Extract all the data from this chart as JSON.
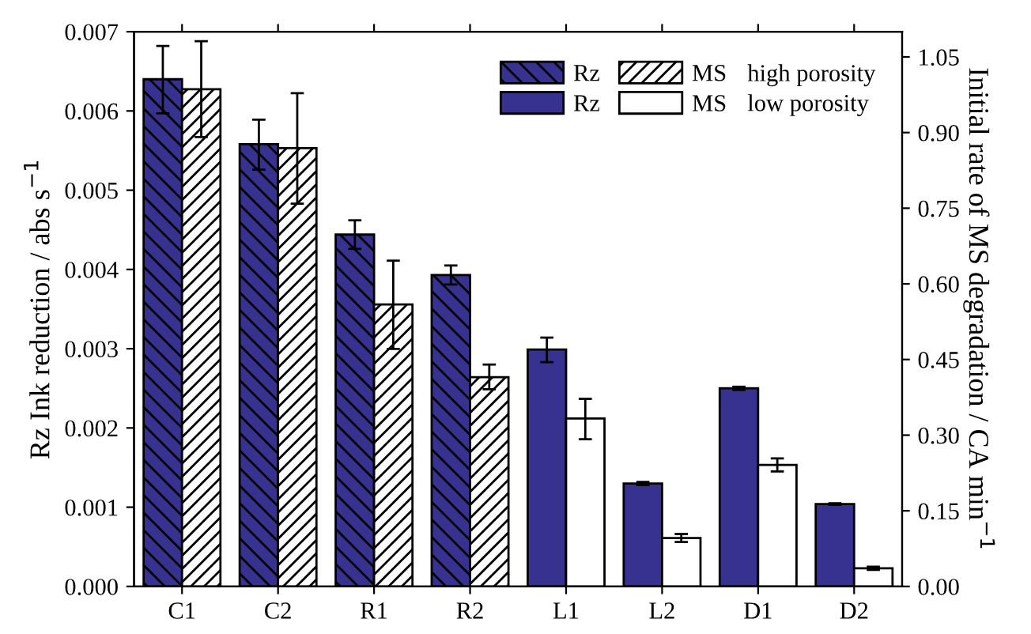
{
  "chart_data": {
    "type": "bar",
    "categories": [
      "C1",
      "C2",
      "R1",
      "R2",
      "L1",
      "L2",
      "D1",
      "D2"
    ],
    "ylabel": "Rz Ink reduction / abs s$^{−1}$",
    "y2label": "Initial rate of MS degradation / CA min$^{−1}$",
    "series": [
      {
        "name": "Rz",
        "color": "#37318f",
        "values": [
          0.0064,
          0.00558,
          0.00444,
          0.00393,
          null,
          null,
          null,
          null
        ],
        "errors": [
          [
            0.00597,
            0.00682
          ],
          [
            0.00526,
            0.00589
          ],
          [
            0.00426,
            0.00462
          ],
          [
            0.00381,
            0.00405
          ],
          null,
          null,
          null,
          null
        ]
      },
      {
        "name": "MS",
        "color": "#ffffff",
        "axis": "y2",
        "values": [
          0.986,
          0.869,
          0.559,
          0.415,
          null,
          null,
          null,
          null
        ],
        "errors": [
          [
            0.891,
            1.081
          ],
          [
            0.759,
            0.978
          ],
          [
            0.471,
            0.646
          ],
          [
            0.391,
            0.44
          ],
          null,
          null,
          null,
          null
        ]
      },
      {
        "name": "Rz",
        "color": "#37318f",
        "values": [
          null,
          null,
          null,
          null,
          0.00299,
          0.0013,
          0.0025,
          0.00104
        ],
        "errors": [
          null,
          null,
          null,
          null,
          [
            0.00283,
            0.00314
          ],
          2e-05,
          2e-05,
          1e-05
        ]
      },
      {
        "name": "MS",
        "color": "#ffffff",
        "axis": "y2",
        "values": [
          null,
          null,
          null,
          null,
          0.333,
          0.096,
          0.241,
          0.036
        ],
        "errors": [
          null,
          null,
          null,
          null,
          [
            0.292,
            0.372
          ],
          0.008,
          0.013,
          0.003
        ]
      }
    ],
    "annotations": [
      "high porosity",
      "low porosity"
    ],
    "ylim": [
      0,
      0.007
    ],
    "yticks": [
      {
        "value": 0,
        "label": "0.000"
      },
      {
        "value": 0.001,
        "label": "0.001"
      },
      {
        "value": 0.002,
        "label": "0.002"
      },
      {
        "value": 0.003,
        "label": "0.003"
      },
      {
        "value": 0.004,
        "label": "0.004"
      },
      {
        "value": 0.005,
        "label": "0.005"
      },
      {
        "value": 0.006,
        "label": "0.006"
      },
      {
        "value": 0.007,
        "label": "0.007"
      }
    ],
    "y2lim": [
      0,
      1.1
    ],
    "y2ticks": [
      {
        "value": 0,
        "label": "0.00"
      },
      {
        "value": 0.15,
        "label": "0.15"
      },
      {
        "value": 0.3,
        "label": "0.30"
      },
      {
        "value": 0.45,
        "label": "0.45"
      },
      {
        "value": 0.6,
        "label": "0.60"
      },
      {
        "value": 0.75,
        "label": "0.75"
      },
      {
        "value": 0.9,
        "label": "0.90"
      },
      {
        "value": 1.05,
        "label": "1.05"
      }
    ],
    "legend": "top right",
    "grid": false
  }
}
